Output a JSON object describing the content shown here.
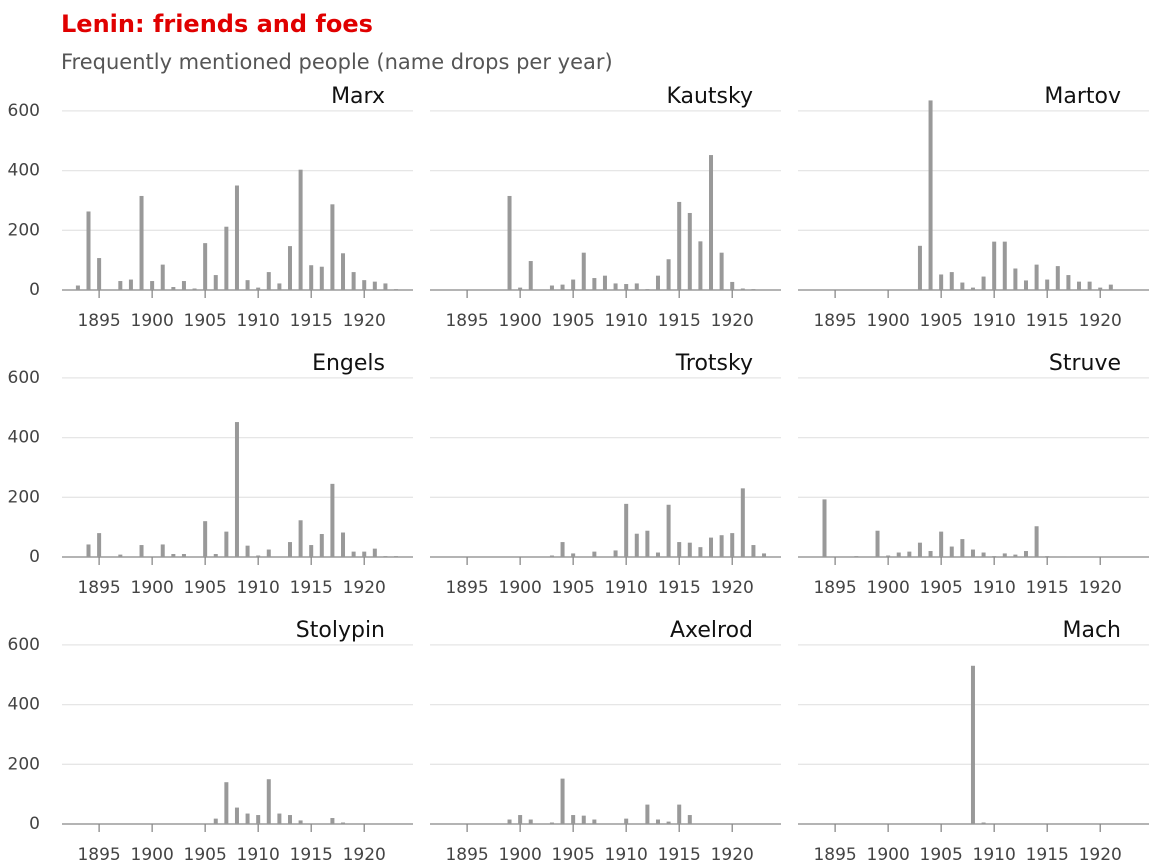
{
  "chart_data": {
    "type": "bar",
    "title": "Lenin: friends and foes",
    "subtitle": "Frequently mentioned people (name drops per year)",
    "x": [
      1893,
      1894,
      1895,
      1896,
      1897,
      1898,
      1899,
      1900,
      1901,
      1902,
      1903,
      1904,
      1905,
      1906,
      1907,
      1908,
      1909,
      1910,
      1911,
      1912,
      1913,
      1914,
      1915,
      1916,
      1917,
      1918,
      1919,
      1920,
      1921,
      1922,
      1923
    ],
    "xlim": [
      1891.5,
      1924.6
    ],
    "xticks": [
      1895,
      1900,
      1905,
      1910,
      1915,
      1920
    ],
    "ylim": [
      0,
      680
    ],
    "yticks": [
      0,
      200,
      400,
      600
    ],
    "grid": true,
    "color": "#999999",
    "series": [
      {
        "name": "Marx",
        "values": [
          15,
          263,
          107,
          0,
          30,
          35,
          315,
          30,
          85,
          10,
          30,
          5,
          157,
          50,
          212,
          350,
          33,
          8,
          60,
          22,
          147,
          403,
          83,
          78,
          287,
          123,
          60,
          33,
          28,
          22,
          3
        ]
      },
      {
        "name": "Kautsky",
        "values": [
          0,
          0,
          0,
          0,
          0,
          0,
          315,
          8,
          97,
          0,
          15,
          18,
          35,
          125,
          40,
          48,
          22,
          20,
          22,
          3,
          48,
          103,
          295,
          258,
          163,
          452,
          125,
          27,
          5,
          3,
          0
        ]
      },
      {
        "name": "Martov",
        "values": [
          0,
          0,
          0,
          0,
          0,
          0,
          0,
          0,
          0,
          0,
          148,
          635,
          52,
          60,
          25,
          8,
          45,
          162,
          162,
          72,
          32,
          85,
          35,
          80,
          50,
          28,
          28,
          8,
          18,
          0,
          0
        ]
      },
      {
        "name": "Engels",
        "values": [
          0,
          42,
          80,
          0,
          8,
          0,
          40,
          0,
          42,
          10,
          10,
          0,
          120,
          10,
          85,
          452,
          38,
          5,
          25,
          0,
          50,
          123,
          40,
          77,
          245,
          82,
          18,
          18,
          28,
          3,
          3
        ]
      },
      {
        "name": "Trotsky",
        "values": [
          0,
          0,
          0,
          0,
          0,
          0,
          0,
          0,
          0,
          0,
          5,
          50,
          12,
          0,
          18,
          0,
          22,
          178,
          78,
          88,
          15,
          175,
          50,
          48,
          33,
          65,
          73,
          80,
          230,
          40,
          12
        ]
      },
      {
        "name": "Struve",
        "values": [
          0,
          193,
          0,
          0,
          3,
          0,
          88,
          5,
          15,
          18,
          48,
          20,
          85,
          35,
          60,
          25,
          15,
          3,
          12,
          8,
          20,
          103,
          3,
          0,
          2,
          0,
          0,
          0,
          0,
          0,
          0
        ]
      },
      {
        "name": "Stolypin",
        "values": [
          0,
          0,
          0,
          0,
          0,
          0,
          0,
          0,
          0,
          0,
          0,
          0,
          0,
          18,
          140,
          55,
          35,
          30,
          150,
          35,
          30,
          12,
          0,
          0,
          20,
          5,
          0,
          0,
          0,
          0,
          0
        ]
      },
      {
        "name": "Axelrod",
        "values": [
          0,
          0,
          0,
          0,
          0,
          0,
          15,
          30,
          15,
          0,
          5,
          152,
          30,
          28,
          15,
          0,
          0,
          18,
          0,
          65,
          15,
          8,
          65,
          30,
          0,
          0,
          0,
          0,
          0,
          0,
          0
        ]
      },
      {
        "name": "Mach",
        "values": [
          0,
          0,
          0,
          0,
          0,
          0,
          0,
          0,
          0,
          0,
          0,
          0,
          0,
          0,
          0,
          530,
          5,
          0,
          0,
          0,
          0,
          0,
          0,
          0,
          0,
          0,
          0,
          0,
          0,
          0,
          0
        ]
      }
    ]
  }
}
